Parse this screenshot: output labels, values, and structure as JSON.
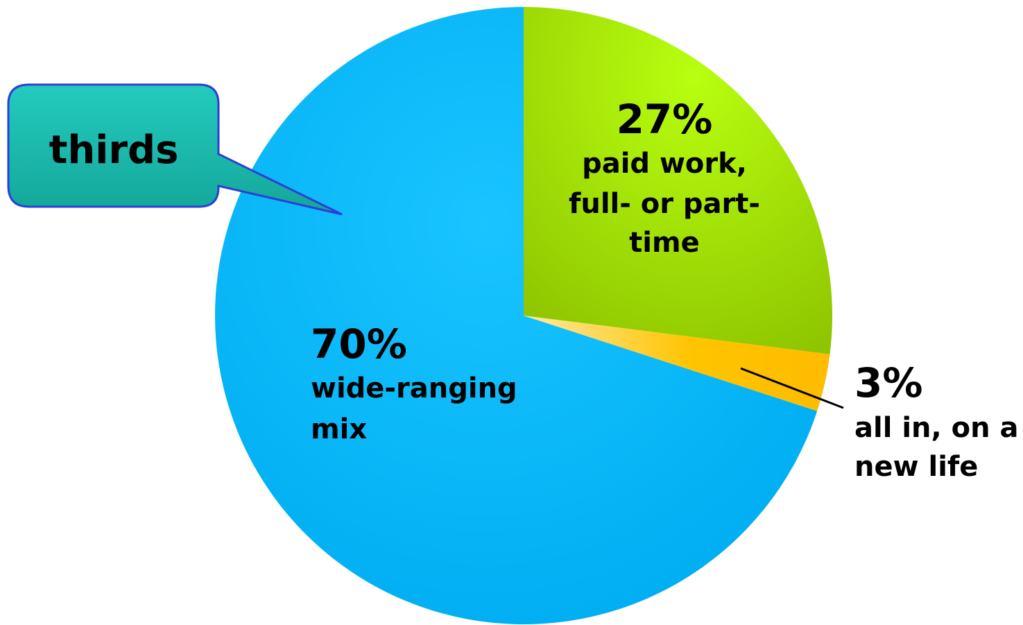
{
  "chart_data": {
    "type": "pie",
    "slices": [
      {
        "value": 27,
        "label": "27%",
        "lines": [
          "paid work,",
          "full- or part-",
          "time"
        ],
        "color": "#99cc00"
      },
      {
        "value": 3,
        "label": "3%",
        "lines": [
          "all in, on a",
          "new life"
        ],
        "color": "#ffc000"
      },
      {
        "value": 70,
        "label": "70%",
        "lines": [
          "wide-ranging",
          "mix"
        ],
        "color": "#00b0f0"
      }
    ],
    "start_direction": "12 o'clock",
    "direction": "clockwise"
  },
  "callout": {
    "text": "thirds",
    "color": "#1fb8aa"
  }
}
